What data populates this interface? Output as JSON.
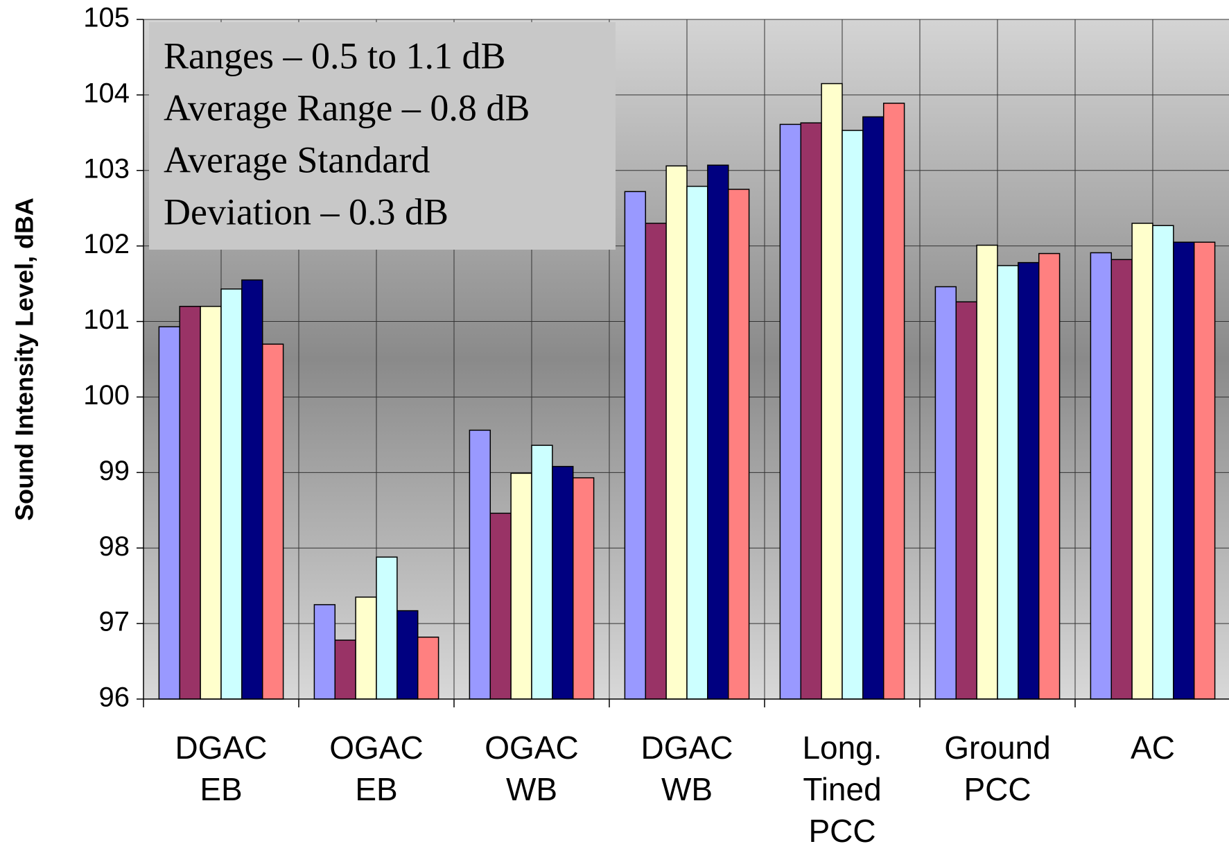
{
  "chart_data": {
    "type": "bar",
    "y_label": "Sound Intensity Level, dBA",
    "annotation": [
      "Ranges – 0.5 to 1.1 dB",
      "Average Range – 0.8 dB",
      "Average Standard",
      "Deviation – 0.3 dB"
    ],
    "categories": [
      "DGAC\nEB",
      "OGAC\nEB",
      "OGAC\nWB",
      "DGAC\nWB",
      "Long.\nTined\nPCC",
      "Ground\nPCC",
      "AC"
    ],
    "series": [
      {
        "color": "#9999ff",
        "values": [
          100.93,
          97.25,
          99.56,
          102.72,
          103.61,
          101.46,
          101.91
        ]
      },
      {
        "color": "#993366",
        "values": [
          101.2,
          96.78,
          98.46,
          102.3,
          103.63,
          101.26,
          101.82
        ]
      },
      {
        "color": "#ffffcc",
        "values": [
          101.2,
          97.35,
          98.99,
          103.06,
          104.15,
          102.01,
          102.3
        ]
      },
      {
        "color": "#ccffff",
        "values": [
          101.43,
          97.88,
          99.36,
          102.79,
          103.53,
          101.74,
          102.27
        ]
      },
      {
        "color": "#000080",
        "values": [
          101.55,
          97.17,
          99.08,
          103.07,
          103.71,
          101.78,
          102.05
        ]
      },
      {
        "color": "#ff8080",
        "values": [
          100.7,
          96.82,
          98.93,
          102.75,
          103.89,
          101.9,
          102.05
        ]
      }
    ],
    "ylim": [
      96,
      105
    ],
    "yticks": [
      96,
      97,
      98,
      99,
      100,
      101,
      102,
      103,
      104,
      105
    ],
    "grid": true
  }
}
